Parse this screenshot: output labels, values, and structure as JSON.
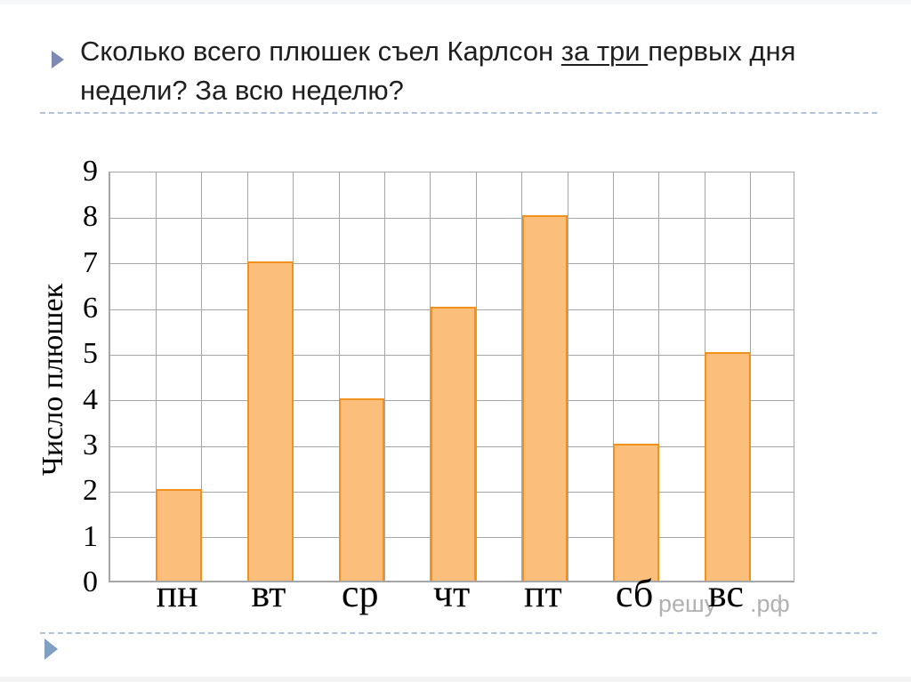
{
  "slide": {
    "title": {
      "part1": "Сколько всего плюшек съел Карлсон ",
      "underlined": "за три ",
      "part2": "первых дня",
      "line2": "недели? За всю неделю?"
    }
  },
  "watermark": {
    "left_text": "решу",
    "right_text": ".рф"
  },
  "chart_data": {
    "type": "bar",
    "categories": [
      "пн",
      "вт",
      "ср",
      "чт",
      "пт",
      "сб",
      "вс"
    ],
    "values": [
      2,
      7,
      4,
      6,
      8,
      3,
      5
    ],
    "title": "",
    "xlabel": "",
    "ylabel": "Число плюшек",
    "ylim": [
      0,
      9
    ],
    "ytick_step": 1,
    "grid": true,
    "legend": false
  },
  "colors": {
    "bar_fill": "#FBBE7B",
    "bar_border": "#F2911E",
    "grid": "#A6A6A6",
    "watermark": "#B1B1B1",
    "title_text": "#1F1F1F",
    "bullet": "#7C89B3",
    "corner": "#7F9FC3",
    "separator": "#B3C2D9"
  }
}
